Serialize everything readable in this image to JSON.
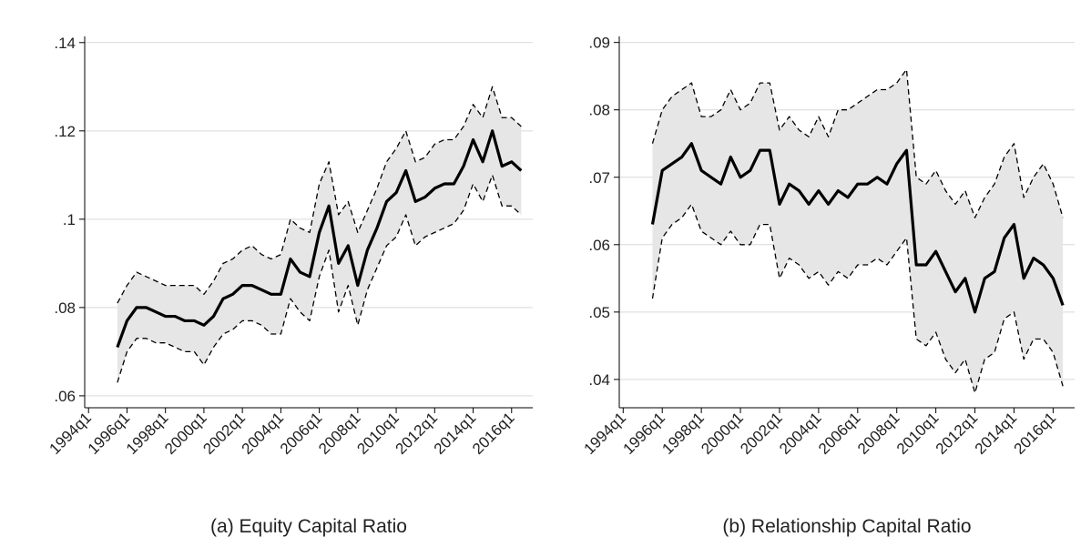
{
  "chart_data": [
    {
      "type": "line",
      "title": "(a) Equity Capital Ratio",
      "x": [
        1995.5,
        1996,
        1996.5,
        1997,
        1997.5,
        1998,
        1998.5,
        1999,
        1999.5,
        2000,
        2000.5,
        2001,
        2001.5,
        2002,
        2002.5,
        2003,
        2003.5,
        2004,
        2004.5,
        2005,
        2005.5,
        2006,
        2006.5,
        2007,
        2007.5,
        2008,
        2008.5,
        2009,
        2009.5,
        2010,
        2010.5,
        2011,
        2011.5,
        2012,
        2012.5,
        2013,
        2013.5,
        2014,
        2014.5,
        2015,
        2015.5,
        2016,
        2016.5
      ],
      "series": [
        {
          "color": "#000000",
          "dashed": false,
          "values": [
            0.071,
            0.077,
            0.08,
            0.08,
            0.079,
            0.078,
            0.078,
            0.077,
            0.077,
            0.076,
            0.078,
            0.082,
            0.083,
            0.085,
            0.085,
            0.084,
            0.083,
            0.083,
            0.091,
            0.088,
            0.087,
            0.097,
            0.103,
            0.09,
            0.094,
            0.085,
            0.093,
            0.098,
            0.104,
            0.106,
            0.111,
            0.104,
            0.105,
            0.107,
            0.108,
            0.108,
            0.112,
            0.118,
            0.113,
            0.12,
            0.112,
            0.113,
            0.111
          ]
        },
        {
          "color": "#000000",
          "dashed": true,
          "values": [
            0.081,
            0.085,
            0.088,
            0.087,
            0.086,
            0.085,
            0.085,
            0.085,
            0.085,
            0.083,
            0.086,
            0.09,
            0.091,
            0.093,
            0.094,
            0.092,
            0.091,
            0.092,
            0.1,
            0.098,
            0.097,
            0.108,
            0.113,
            0.101,
            0.104,
            0.097,
            0.102,
            0.107,
            0.113,
            0.116,
            0.12,
            0.113,
            0.114,
            0.117,
            0.118,
            0.118,
            0.121,
            0.126,
            0.123,
            0.13,
            0.123,
            0.123,
            0.121
          ]
        },
        {
          "color": "#000000",
          "dashed": true,
          "values": [
            0.063,
            0.07,
            0.073,
            0.073,
            0.072,
            0.072,
            0.071,
            0.07,
            0.07,
            0.067,
            0.071,
            0.074,
            0.075,
            0.077,
            0.077,
            0.076,
            0.074,
            0.074,
            0.082,
            0.079,
            0.077,
            0.087,
            0.093,
            0.079,
            0.085,
            0.076,
            0.084,
            0.089,
            0.094,
            0.096,
            0.101,
            0.094,
            0.096,
            0.097,
            0.098,
            0.099,
            0.102,
            0.108,
            0.104,
            0.11,
            0.103,
            0.103,
            0.101
          ]
        }
      ],
      "band_color": "#e6e6e6",
      "xlim": [
        1993.8,
        2017.1
      ],
      "xticks": [
        {
          "value": 1994,
          "label": "1994q1"
        },
        {
          "value": 1996,
          "label": "1996q1"
        },
        {
          "value": 1998,
          "label": "1998q1"
        },
        {
          "value": 2000,
          "label": "2000q1"
        },
        {
          "value": 2002,
          "label": "2002q1"
        },
        {
          "value": 2004,
          "label": "2004q1"
        },
        {
          "value": 2006,
          "label": "2006q1"
        },
        {
          "value": 2008,
          "label": "2008q1"
        },
        {
          "value": 2010,
          "label": "2010q1"
        },
        {
          "value": 2012,
          "label": "2012q1"
        },
        {
          "value": 2014,
          "label": "2014q1"
        },
        {
          "value": 2016,
          "label": "2016q1"
        }
      ],
      "ylim": [
        0.0573,
        0.1414
      ],
      "yticks": [
        {
          "value": 0.06,
          "label": ".06"
        },
        {
          "value": 0.08,
          "label": ".08"
        },
        {
          "value": 0.1,
          "label": ".1"
        },
        {
          "value": 0.12,
          "label": ".12"
        },
        {
          "value": 0.14,
          "label": ".14"
        }
      ],
      "grid": true
    },
    {
      "type": "line",
      "title": "(b) Relationship Capital Ratio",
      "x": [
        1995.5,
        1996,
        1996.5,
        1997,
        1997.5,
        1998,
        1998.5,
        1999,
        1999.5,
        2000,
        2000.5,
        2001,
        2001.5,
        2002,
        2002.5,
        2003,
        2003.5,
        2004,
        2004.5,
        2005,
        2005.5,
        2006,
        2006.5,
        2007,
        2007.5,
        2008,
        2008.5,
        2009,
        2009.5,
        2010,
        2010.5,
        2011,
        2011.5,
        2012,
        2012.5,
        2013,
        2013.5,
        2014,
        2014.5,
        2015,
        2015.5,
        2016,
        2016.5
      ],
      "series": [
        {
          "color": "#000000",
          "dashed": false,
          "values": [
            0.063,
            0.071,
            0.072,
            0.073,
            0.075,
            0.071,
            0.07,
            0.069,
            0.073,
            0.07,
            0.071,
            0.074,
            0.074,
            0.066,
            0.069,
            0.068,
            0.066,
            0.068,
            0.066,
            0.068,
            0.067,
            0.069,
            0.069,
            0.07,
            0.069,
            0.072,
            0.074,
            0.057,
            0.057,
            0.059,
            0.056,
            0.053,
            0.055,
            0.05,
            0.055,
            0.056,
            0.061,
            0.063,
            0.055,
            0.058,
            0.057,
            0.055,
            0.051
          ]
        },
        {
          "color": "#000000",
          "dashed": true,
          "values": [
            0.075,
            0.08,
            0.082,
            0.083,
            0.084,
            0.079,
            0.079,
            0.08,
            0.083,
            0.08,
            0.081,
            0.084,
            0.084,
            0.077,
            0.079,
            0.077,
            0.076,
            0.079,
            0.076,
            0.08,
            0.08,
            0.081,
            0.082,
            0.083,
            0.083,
            0.084,
            0.086,
            0.07,
            0.069,
            0.071,
            0.068,
            0.066,
            0.068,
            0.064,
            0.067,
            0.069,
            0.073,
            0.075,
            0.067,
            0.07,
            0.072,
            0.069,
            0.064
          ]
        },
        {
          "color": "#000000",
          "dashed": true,
          "values": [
            0.052,
            0.061,
            0.063,
            0.064,
            0.066,
            0.062,
            0.061,
            0.06,
            0.062,
            0.06,
            0.06,
            0.063,
            0.063,
            0.055,
            0.058,
            0.057,
            0.055,
            0.056,
            0.054,
            0.056,
            0.055,
            0.057,
            0.057,
            0.058,
            0.057,
            0.059,
            0.061,
            0.046,
            0.045,
            0.047,
            0.043,
            0.041,
            0.043,
            0.038,
            0.043,
            0.044,
            0.049,
            0.05,
            0.043,
            0.046,
            0.046,
            0.044,
            0.039
          ]
        }
      ],
      "band_color": "#e6e6e6",
      "xlim": [
        1993.8,
        2017.1
      ],
      "xticks": [
        {
          "value": 1994,
          "label": "1994q1"
        },
        {
          "value": 1996,
          "label": "1996q1"
        },
        {
          "value": 1998,
          "label": "1998q1"
        },
        {
          "value": 2000,
          "label": "2000q1"
        },
        {
          "value": 2002,
          "label": "2002q1"
        },
        {
          "value": 2004,
          "label": "2004q1"
        },
        {
          "value": 2006,
          "label": "2006q1"
        },
        {
          "value": 2008,
          "label": "2008q1"
        },
        {
          "value": 2010,
          "label": "2010q1"
        },
        {
          "value": 2012,
          "label": "2012q1"
        },
        {
          "value": 2014,
          "label": "2014q1"
        },
        {
          "value": 2016,
          "label": "2016q1"
        }
      ],
      "ylim": [
        0.0358,
        0.0909
      ],
      "yticks": [
        {
          "value": 0.04,
          "label": ".04"
        },
        {
          "value": 0.05,
          "label": ".05"
        },
        {
          "value": 0.06,
          "label": ".06"
        },
        {
          "value": 0.07,
          "label": ".07"
        },
        {
          "value": 0.08,
          "label": ".08"
        },
        {
          "value": 0.09,
          "label": ".09"
        }
      ],
      "grid": true
    }
  ]
}
